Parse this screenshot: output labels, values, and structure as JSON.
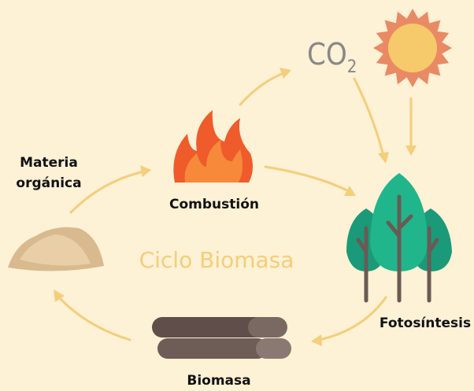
{
  "labels": {
    "materia_organica": [
      "Materia",
      "orgánica"
    ],
    "combustion": "Combustión",
    "fotosintesis": "Fotosíntesis",
    "biomasa": "Biomasa",
    "center": "Ciclo Biomasa",
    "co2": {
      "base": "CO",
      "sub": "2"
    }
  }
}
